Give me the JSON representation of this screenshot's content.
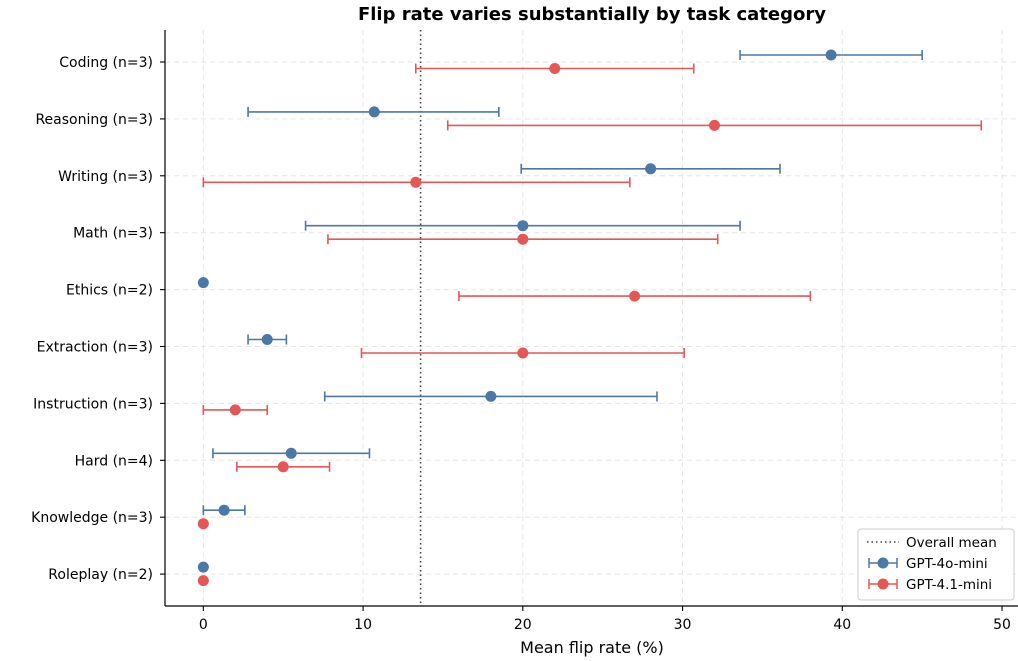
{
  "chart_data": {
    "type": "scatter",
    "title": "Flip rate varies substantially by task category",
    "xlabel": "Mean flip rate (%)",
    "ylabel": "",
    "xlim": [
      -2.4,
      51
    ],
    "xticks": [
      0,
      10,
      20,
      30,
      40,
      50
    ],
    "grid": true,
    "legend_position": "bottom-right",
    "categories": [
      "Coding (n=3)",
      "Reasoning (n=3)",
      "Writing (n=3)",
      "Math (n=3)",
      "Ethics (n=2)",
      "Extraction (n=3)",
      "Instruction (n=3)",
      "Hard (n=4)",
      "Knowledge (n=3)",
      "Roleplay (n=2)"
    ],
    "overall_mean": 13.6,
    "overall_mean_label": "Overall mean",
    "series": [
      {
        "name": "GPT-4o-mini",
        "color": "#4c78a8",
        "values": [
          39.3,
          10.7,
          28.0,
          20.0,
          0.0,
          4.0,
          18.0,
          5.5,
          1.3,
          0.0
        ],
        "err_low": [
          33.6,
          2.8,
          19.9,
          6.4,
          null,
          2.8,
          7.6,
          0.6,
          0.0,
          null
        ],
        "err_high": [
          45.0,
          18.5,
          36.1,
          33.6,
          null,
          5.2,
          28.4,
          10.4,
          2.6,
          null
        ]
      },
      {
        "name": "GPT-4.1-mini",
        "color": "#e45756",
        "values": [
          22.0,
          32.0,
          13.3,
          20.0,
          27.0,
          20.0,
          2.0,
          5.0,
          0.0,
          0.0
        ],
        "err_low": [
          13.3,
          15.3,
          0.0,
          7.8,
          16.0,
          9.9,
          0.0,
          2.1,
          null,
          null
        ],
        "err_high": [
          30.7,
          48.7,
          26.7,
          32.2,
          38.0,
          30.1,
          4.0,
          7.9,
          null,
          null
        ]
      }
    ]
  }
}
